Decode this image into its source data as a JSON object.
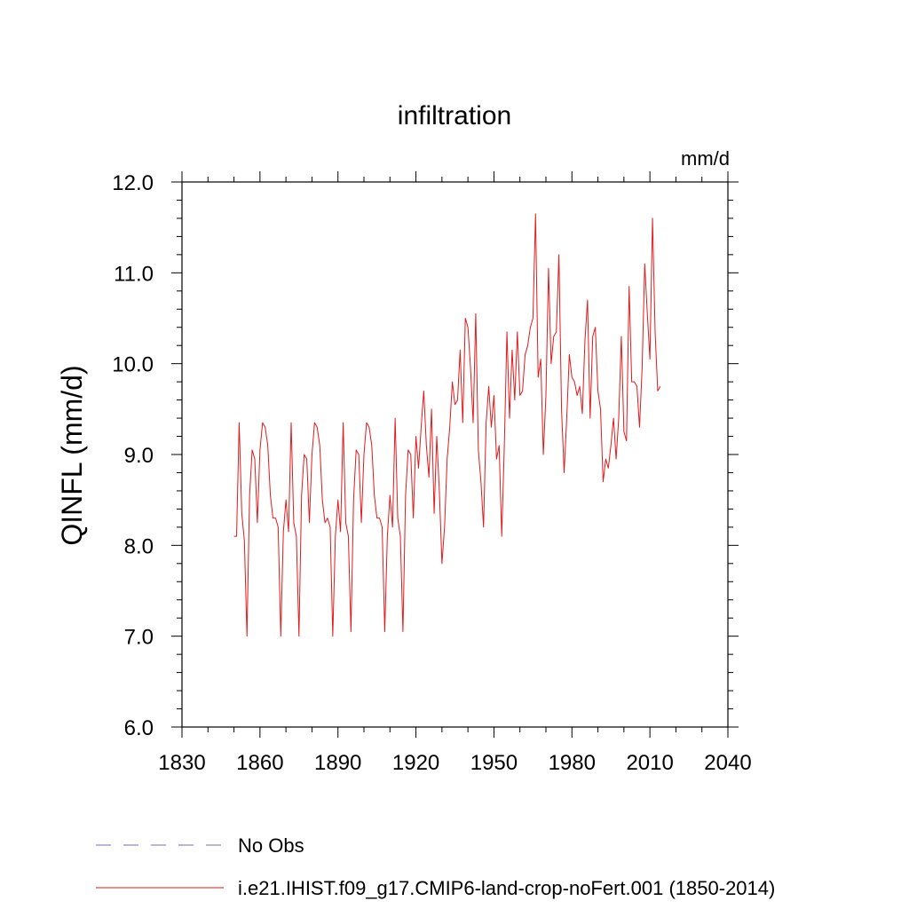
{
  "chart_data": {
    "type": "line",
    "title": "infiltration",
    "units_label": "mm/d",
    "ylabel": "QINFL  (mm/d)",
    "xlabel": "",
    "xlim": [
      1830,
      2040
    ],
    "ylim": [
      6.0,
      12.0
    ],
    "x_ticks": [
      "1830",
      "1860",
      "1890",
      "1920",
      "1950",
      "1980",
      "2010",
      "2040"
    ],
    "x_tick_values": [
      1830,
      1860,
      1890,
      1920,
      1950,
      1980,
      2010,
      2040
    ],
    "y_ticks": [
      "6.0",
      "7.0",
      "8.0",
      "9.0",
      "10.0",
      "11.0",
      "12.0"
    ],
    "y_tick_values": [
      6,
      7,
      8,
      9,
      10,
      11,
      12
    ],
    "grid": false,
    "legend_position": "bottom",
    "legend": [
      {
        "label": "No Obs",
        "color": "#7b68c8",
        "style": "dashed"
      },
      {
        "label": "i.e21.IHIST.f09_g17.CMIP6-land-crop-noFert.001 (1850-2014)",
        "color": "#e31a1c",
        "style": "solid"
      }
    ],
    "series": [
      {
        "name": "i.e21.IHIST.f09_g17.CMIP6-land-crop-noFert.001 (1850-2014)",
        "color": "#e31a1c",
        "x": [
          1850,
          1851,
          1852,
          1853,
          1854,
          1855,
          1856,
          1857,
          1858,
          1859,
          1860,
          1861,
          1862,
          1863,
          1864,
          1865,
          1866,
          1867,
          1868,
          1869,
          1870,
          1871,
          1872,
          1873,
          1874,
          1875,
          1876,
          1877,
          1878,
          1879,
          1880,
          1881,
          1882,
          1883,
          1884,
          1885,
          1886,
          1887,
          1888,
          1889,
          1890,
          1891,
          1892,
          1893,
          1894,
          1895,
          1896,
          1897,
          1898,
          1899,
          1900,
          1901,
          1902,
          1903,
          1904,
          1905,
          1906,
          1907,
          1908,
          1909,
          1910,
          1911,
          1912,
          1913,
          1914,
          1915,
          1916,
          1917,
          1918,
          1919,
          1920,
          1921,
          1922,
          1923,
          1924,
          1925,
          1926,
          1927,
          1928,
          1929,
          1930,
          1931,
          1932,
          1933,
          1934,
          1935,
          1936,
          1937,
          1938,
          1939,
          1940,
          1941,
          1942,
          1943,
          1944,
          1945,
          1946,
          1947,
          1948,
          1949,
          1950,
          1951,
          1952,
          1953,
          1954,
          1955,
          1956,
          1957,
          1958,
          1959,
          1960,
          1961,
          1962,
          1963,
          1964,
          1965,
          1966,
          1967,
          1968,
          1969,
          1970,
          1971,
          1972,
          1973,
          1974,
          1975,
          1976,
          1977,
          1978,
          1979,
          1980,
          1981,
          1982,
          1983,
          1984,
          1985,
          1986,
          1987,
          1988,
          1989,
          1990,
          1991,
          1992,
          1993,
          1994,
          1995,
          1996,
          1997,
          1998,
          1999,
          2000,
          2001,
          2002,
          2003,
          2004,
          2005,
          2006,
          2007,
          2008,
          2009,
          2010,
          2011,
          2012,
          2013,
          2014
        ],
        "y": [
          8.1,
          8.1,
          9.35,
          8.35,
          8.05,
          7.0,
          8.55,
          9.05,
          8.95,
          8.25,
          9.05,
          9.35,
          9.3,
          9.1,
          8.55,
          8.3,
          8.3,
          8.2,
          7.0,
          8.15,
          8.5,
          8.15,
          9.35,
          8.25,
          8.1,
          7.0,
          8.55,
          9.0,
          8.95,
          8.25,
          9.0,
          9.35,
          9.3,
          9.1,
          8.5,
          8.25,
          8.3,
          8.2,
          7.0,
          8.1,
          8.5,
          8.15,
          9.35,
          8.25,
          8.1,
          7.05,
          8.5,
          9.05,
          9.0,
          8.25,
          9.0,
          9.35,
          9.3,
          9.1,
          8.55,
          8.3,
          8.3,
          8.2,
          7.05,
          8.1,
          8.55,
          8.2,
          9.4,
          8.3,
          8.1,
          7.05,
          8.55,
          9.05,
          9.0,
          8.3,
          9.2,
          8.85,
          9.3,
          9.7,
          9.1,
          8.75,
          9.5,
          8.35,
          9.2,
          8.6,
          7.8,
          8.2,
          8.95,
          9.3,
          9.8,
          9.55,
          9.6,
          10.15,
          9.35,
          10.5,
          10.4,
          9.95,
          9.35,
          10.55,
          9.05,
          8.7,
          8.2,
          9.35,
          9.75,
          9.3,
          9.65,
          8.95,
          9.1,
          8.1,
          9.1,
          10.35,
          9.4,
          10.15,
          9.6,
          10.35,
          9.65,
          9.7,
          10.1,
          10.2,
          10.4,
          10.5,
          11.65,
          9.85,
          10.05,
          9.0,
          9.65,
          11.05,
          10.0,
          10.3,
          10.35,
          11.2,
          9.5,
          8.8,
          9.4,
          10.1,
          9.85,
          9.8,
          9.65,
          9.75,
          9.45,
          10.25,
          10.7,
          9.4,
          10.3,
          10.4,
          9.7,
          9.5,
          8.7,
          8.95,
          8.85,
          9.1,
          9.4,
          8.95,
          9.4,
          10.3,
          9.25,
          9.15,
          10.85,
          9.8,
          9.8,
          9.75,
          9.3,
          9.95,
          11.1,
          10.55,
          10.05,
          11.6,
          10.35,
          9.7,
          9.75
        ]
      }
    ]
  }
}
